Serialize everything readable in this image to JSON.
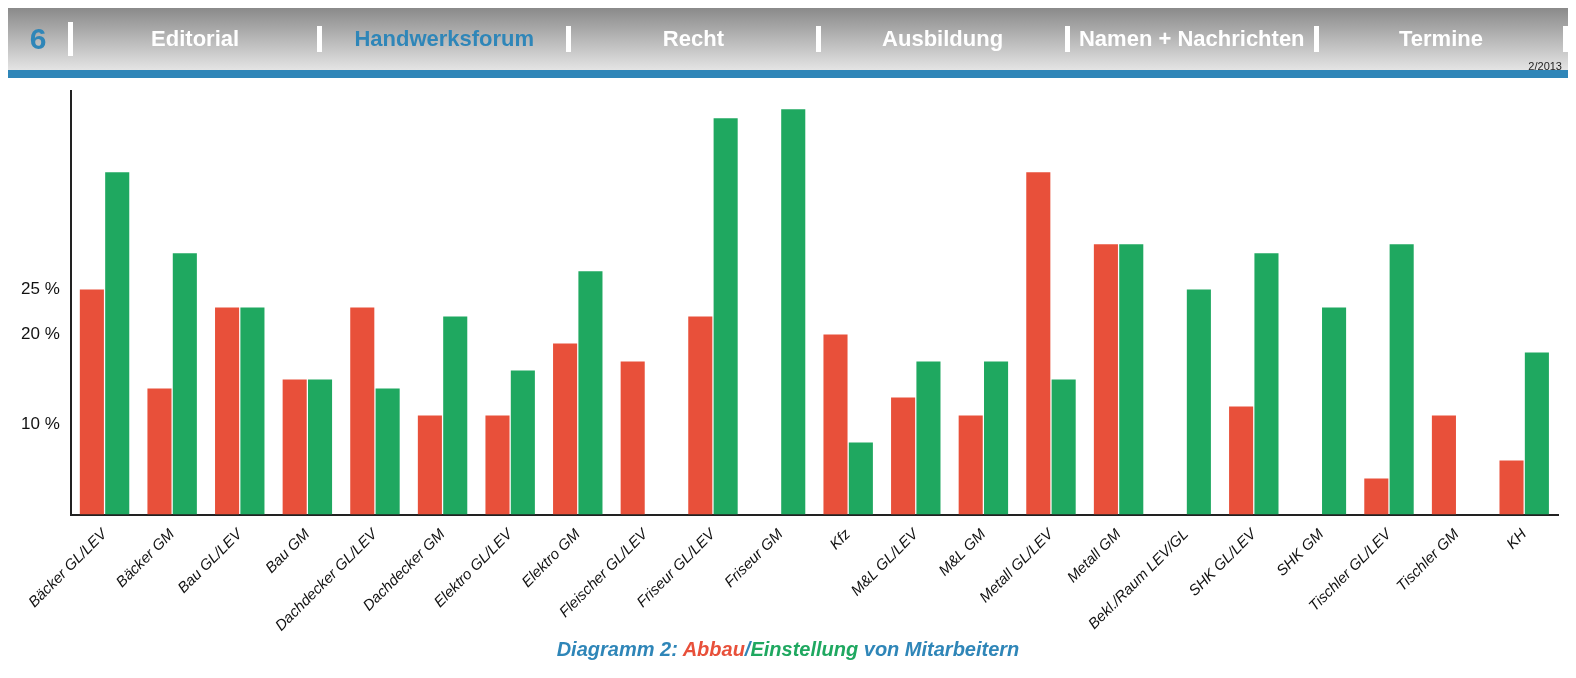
{
  "chart_data": {
    "type": "bar",
    "title": "Diagramm 2:",
    "annotations": [
      "6",
      "Editorial",
      "Handwerksforum",
      "Recht",
      "Ausbildung",
      "Namen + Nachrichten",
      "Termine",
      "2/2013",
      "/",
      "von Mitarbeitern"
    ],
    "categories": [
      "Bäcker GL/LEV",
      "Bäcker GM",
      "Bau GL/LEV",
      "Bau GM",
      "Dachdecker GL/LEV",
      "Dachdecker GM",
      "Elektro GL/LEV",
      "Elektro GM",
      "Fleischer GL/LEV",
      "Friseur GL/LEV",
      "Friseur GM",
      "Kfz",
      "M&L GL/LEV",
      "M&L GM",
      "Metall GL/LEV",
      "Metall GM",
      "Bekl./Raum LEV/GL",
      "SHK GL/LEV",
      "SHK GM",
      "Tischler GL/LEV",
      "Tischler GM",
      "KH"
    ],
    "series": [
      {
        "name": "Abbau",
        "color": "#e8503a",
        "values": [
          25,
          14,
          23,
          15,
          23,
          11,
          11,
          19,
          17,
          22,
          null,
          20,
          13,
          11,
          38,
          30,
          null,
          12,
          null,
          4,
          11,
          6
        ]
      },
      {
        "name": "Einstellung",
        "color": "#1fa860",
        "values": [
          38,
          29,
          23,
          15,
          14,
          22,
          16,
          27,
          null,
          44,
          45,
          8,
          17,
          17,
          15,
          30,
          25,
          29,
          23,
          30,
          null,
          18
        ]
      }
    ],
    "ylim": [
      0,
      47
    ],
    "yticks": [
      {
        "value": 10,
        "label": "10 %"
      },
      {
        "value": 20,
        "label": "20 %"
      },
      {
        "value": 25,
        "label": "25 %"
      }
    ],
    "grid": false,
    "legend": false
  }
}
